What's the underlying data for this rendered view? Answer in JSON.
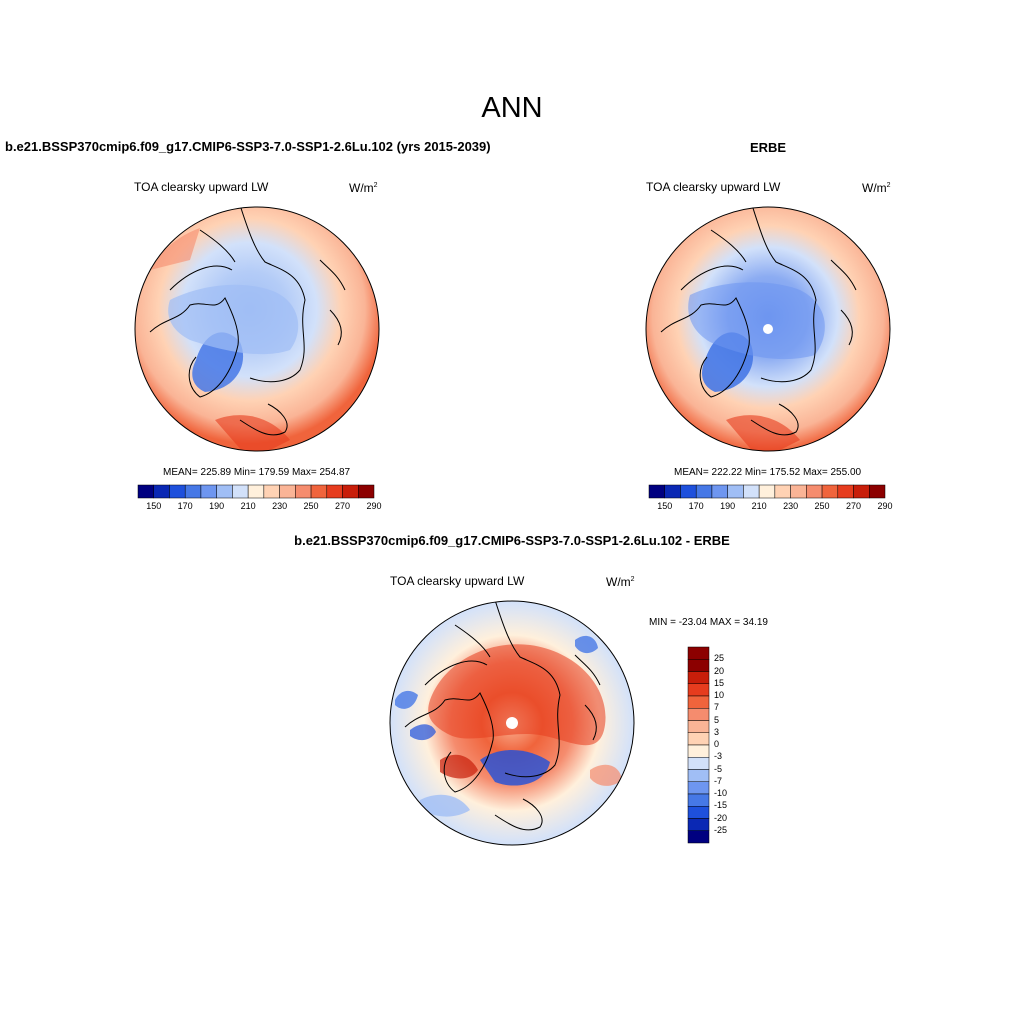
{
  "figure": {
    "title": "ANN"
  },
  "panels": {
    "model": {
      "title": "b.e21.BSSP370cmip6.f09_g17.CMIP6-SSP3-7.0-SSP1-2.6Lu.102 (yrs 2015-2039)",
      "variable": "TOA clearsky upward LW",
      "units_base": "W/m",
      "units_exp": "2",
      "stats": "MEAN= 225.89  Min= 179.59  Max= 254.87"
    },
    "obs": {
      "title": "ERBE",
      "variable": "TOA clearsky upward LW",
      "units_base": "W/m",
      "units_exp": "2",
      "stats": "MEAN= 222.22  Min= 175.52  Max= 255.00"
    },
    "diff": {
      "title": "b.e21.BSSP370cmip6.f09_g17.CMIP6-SSP3-7.0-SSP1-2.6Lu.102 - ERBE",
      "variable": "TOA clearsky upward LW",
      "units_base": "W/m",
      "units_exp": "2",
      "stats": "MIN = -23.04 MAX =  34.19"
    }
  },
  "colorbars": {
    "abs": {
      "labels": [
        "150",
        "170",
        "190",
        "210",
        "230",
        "250",
        "270",
        "290"
      ],
      "colors": [
        "#000080",
        "#0a28b4",
        "#1e50dc",
        "#4678e6",
        "#6e96f0",
        "#a0bef5",
        "#d2e1fa",
        "#fff0dc",
        "#ffd2b4",
        "#fab496",
        "#f58c6e",
        "#f0643c",
        "#e63c1e",
        "#c81e0a",
        "#8c0000"
      ]
    },
    "diff": {
      "labels": [
        "25",
        "20",
        "15",
        "10",
        "7",
        "5",
        "3",
        "0",
        "-3",
        "-5",
        "-7",
        "-10",
        "-15",
        "-20",
        "-25"
      ],
      "colors": [
        "#8c0000",
        "#c81e0a",
        "#e63c1e",
        "#f0643c",
        "#f58c6e",
        "#fab496",
        "#ffd2b4",
        "#fff0dc",
        "#d2e1fa",
        "#a0bef5",
        "#6e96f0",
        "#4678e6",
        "#1e50dc",
        "#0a28b4",
        "#000080"
      ]
    }
  }
}
